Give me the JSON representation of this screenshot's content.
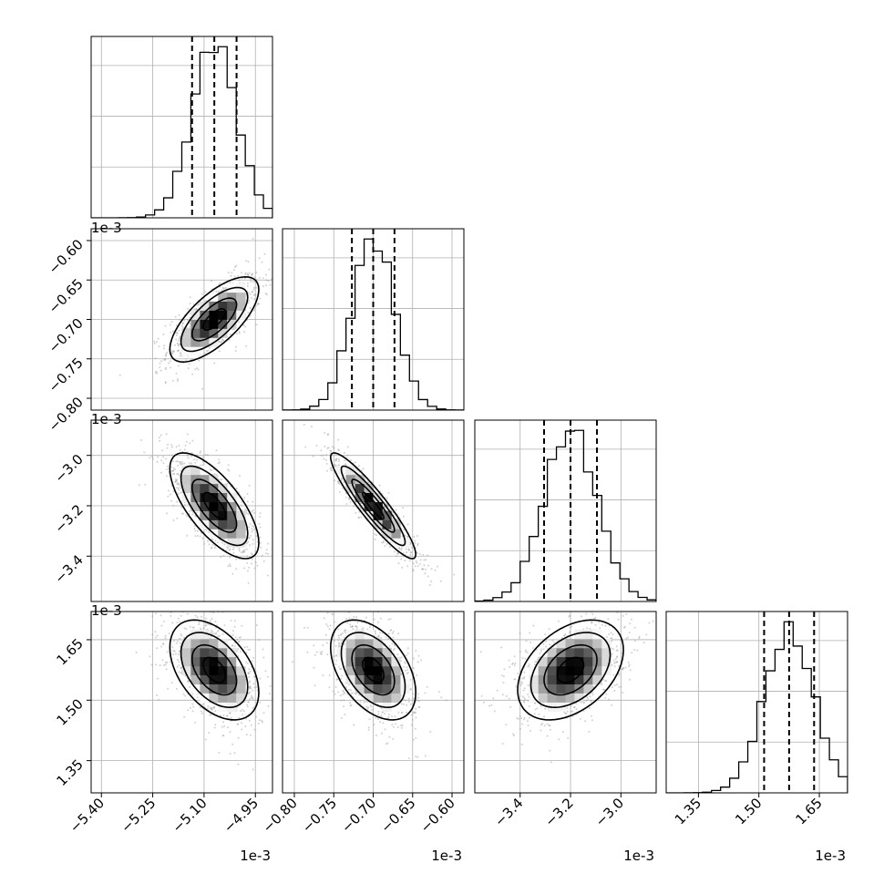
{
  "chart_data": {
    "type": "corner",
    "params": [
      {
        "center": -5.07,
        "sigma": 0.065,
        "range": [
          -5.43,
          -4.9
        ],
        "ticks": [
          "-5.40",
          "-5.25",
          "-5.10",
          "-4.95"
        ],
        "tick_values": [
          -5.4,
          -5.25,
          -5.1,
          -4.95
        ],
        "quantiles": [
          -5.135,
          -5.07,
          -5.005
        ],
        "exp": "1e-3"
      },
      {
        "center": -0.7,
        "sigma": 0.027,
        "range": [
          -0.815,
          -0.585
        ],
        "ticks": [
          "-0.80",
          "-0.75",
          "-0.70",
          "-0.65",
          "-0.60"
        ],
        "tick_values": [
          -0.8,
          -0.75,
          -0.7,
          -0.65,
          -0.6
        ],
        "quantiles": [
          -0.727,
          -0.7,
          -0.673
        ],
        "exp": "1e-3"
      },
      {
        "center": -3.2,
        "sigma": 0.105,
        "range": [
          -3.58,
          -2.86
        ],
        "ticks": [
          "-3.4",
          "-3.2",
          "-3.0"
        ],
        "tick_values": [
          -3.4,
          -3.2,
          -3.0
        ],
        "quantiles": [
          -3.305,
          -3.2,
          -3.095
        ],
        "exp": "1e-3"
      },
      {
        "center": 1.575,
        "sigma": 0.062,
        "range": [
          1.27,
          1.72
        ],
        "ticks": [
          "1.35",
          "1.50",
          "1.65"
        ],
        "tick_values": [
          1.35,
          1.5,
          1.65
        ],
        "quantiles": [
          1.513,
          1.575,
          1.637
        ],
        "exp": "1e-3"
      }
    ],
    "correlations": [
      [
        1,
        0.7,
        -0.7,
        -0.45
      ],
      [
        0.7,
        1,
        -0.92,
        -0.45
      ],
      [
        -0.7,
        -0.92,
        1,
        0.4
      ],
      [
        -0.45,
        -0.45,
        0.4,
        1
      ]
    ],
    "axis_labels": [],
    "grid": true,
    "quantile_lines": "dashed",
    "contour_levels": 3
  }
}
